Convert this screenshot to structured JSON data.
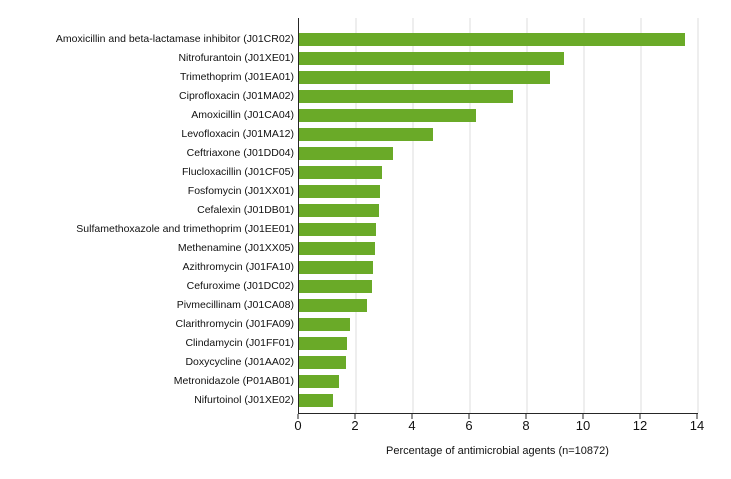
{
  "chart_data": {
    "type": "bar",
    "orientation": "horizontal",
    "title": "",
    "xlabel": "Percentage of antimicrobial agents (n=10872)",
    "ylabel": "",
    "xlim": [
      0,
      14
    ],
    "xticks": [
      0,
      2,
      4,
      6,
      8,
      10,
      12,
      14
    ],
    "gridlines": [
      2,
      4,
      6,
      8,
      10,
      12,
      14
    ],
    "grid": "vertical-light-gray",
    "legend": "none",
    "categories": [
      "Amoxicillin and beta-lactamase inhibitor (J01CR02)",
      "Nitrofurantoin (J01XE01)",
      "Trimethoprim (J01EA01)",
      "Ciprofloxacin (J01MA02)",
      "Amoxicillin (J01CA04)",
      "Levofloxacin (J01MA12)",
      "Ceftriaxone (J01DD04)",
      "Flucloxacillin (J01CF05)",
      "Fosfomycin (J01XX01)",
      "Cefalexin (J01DB01)",
      "Sulfamethoxazole and trimethoprim (J01EE01)",
      "Methenamine (J01XX05)",
      "Azithromycin (J01FA10)",
      "Cefuroxime (J01DC02)",
      "Pivmecillinam (J01CA08)",
      "Clarithromycin (J01FA09)",
      "Clindamycin (J01FF01)",
      "Doxycycline (J01AA02)",
      "Metronidazole (P01AB01)",
      "Nifurtoinol (J01XE02)"
    ],
    "values": [
      13.55,
      9.3,
      8.8,
      7.5,
      6.2,
      4.7,
      3.3,
      2.9,
      2.85,
      2.8,
      2.7,
      2.65,
      2.6,
      2.55,
      2.4,
      1.8,
      1.7,
      1.65,
      1.4,
      1.2
    ]
  },
  "colors": {
    "bar": "#6AAA28",
    "gridline": "#DEDEDE",
    "axis": "#262626",
    "text": "#111111",
    "background": "#FFFFFF"
  }
}
